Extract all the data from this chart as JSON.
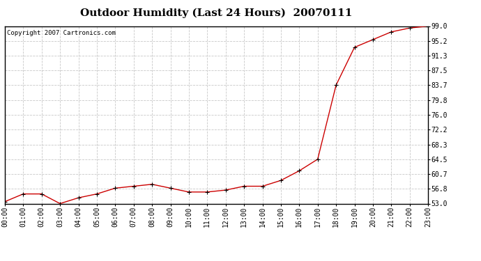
{
  "title": "Outdoor Humidity (Last 24 Hours)  20070111",
  "copyright_text": "Copyright 2007 Cartronics.com",
  "x_labels": [
    "00:00",
    "01:00",
    "02:00",
    "03:00",
    "04:00",
    "05:00",
    "06:00",
    "07:00",
    "08:00",
    "09:00",
    "10:00",
    "11:00",
    "12:00",
    "13:00",
    "14:00",
    "15:00",
    "16:00",
    "17:00",
    "18:00",
    "19:00",
    "20:00",
    "21:00",
    "22:00",
    "23:00"
  ],
  "x_values": [
    0,
    1,
    2,
    3,
    4,
    5,
    6,
    7,
    8,
    9,
    10,
    11,
    12,
    13,
    14,
    15,
    16,
    17,
    18,
    19,
    20,
    21,
    22,
    23
  ],
  "y_values": [
    53.5,
    55.5,
    55.5,
    53.0,
    54.5,
    55.5,
    57.0,
    57.5,
    58.0,
    57.0,
    56.0,
    56.0,
    56.5,
    57.5,
    57.5,
    59.0,
    61.5,
    64.5,
    83.7,
    93.5,
    95.5,
    97.5,
    98.5,
    99.0
  ],
  "y_ticks": [
    53.0,
    56.8,
    60.7,
    64.5,
    68.3,
    72.2,
    76.0,
    79.8,
    83.7,
    87.5,
    91.3,
    95.2,
    99.0
  ],
  "y_tick_labels": [
    "53.0",
    "56.8",
    "60.7",
    "64.5",
    "68.3",
    "72.2",
    "76.0",
    "79.8",
    "83.7",
    "87.5",
    "91.3",
    "95.2",
    "99.0"
  ],
  "ylim": [
    53.0,
    99.0
  ],
  "xlim": [
    0,
    23
  ],
  "line_color": "#cc0000",
  "marker_color": "#000000",
  "background_color": "#ffffff",
  "grid_color": "#c8c8c8",
  "title_fontsize": 11,
  "tick_fontsize": 7,
  "copyright_fontsize": 6.5
}
